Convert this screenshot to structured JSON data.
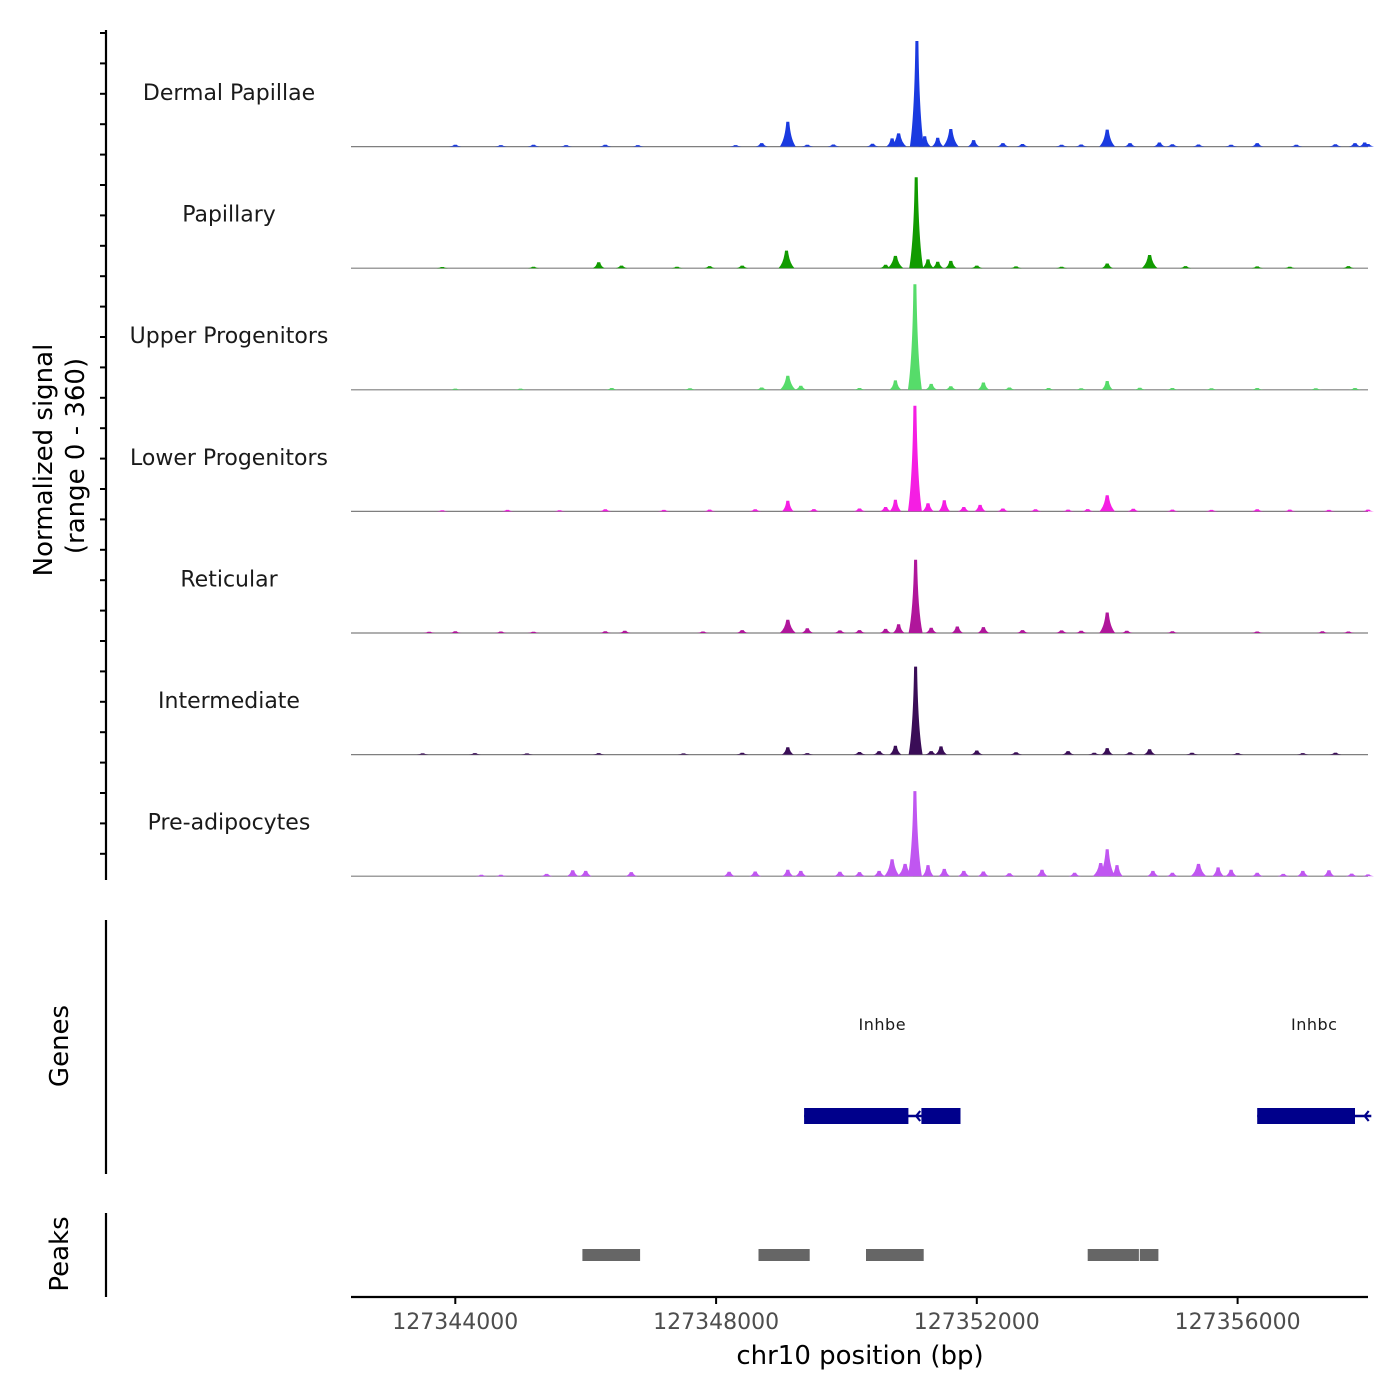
{
  "chart_data": {
    "type": "area",
    "title": "",
    "genome": {
      "chromosome": "chr10",
      "x_range": [
        127342400,
        127358000
      ]
    },
    "coverage": {
      "ylabel_line1": "Normalized signal",
      "ylabel_line2": "(range 0 - 360)",
      "ylim": [
        0,
        360
      ],
      "baseline_range": [
        127342400,
        127358000
      ],
      "tracks": [
        {
          "name": "Dermal Papillae",
          "color": "#1a3ae0",
          "peaks": [
            [
              127344000,
              6
            ],
            [
              127344700,
              5
            ],
            [
              127345200,
              6
            ],
            [
              127345700,
              5
            ],
            [
              127346300,
              6
            ],
            [
              127346800,
              5
            ],
            [
              127348300,
              5
            ],
            [
              127348700,
              12
            ],
            [
              127349100,
              85
            ],
            [
              127349400,
              6
            ],
            [
              127349800,
              7
            ],
            [
              127350400,
              10
            ],
            [
              127350700,
              28
            ],
            [
              127350800,
              45
            ],
            [
              127351080,
              360
            ],
            [
              127351200,
              35
            ],
            [
              127351400,
              30
            ],
            [
              127351600,
              60
            ],
            [
              127351950,
              22
            ],
            [
              127352400,
              12
            ],
            [
              127352700,
              9
            ],
            [
              127353300,
              6
            ],
            [
              127353600,
              7
            ],
            [
              127354000,
              58
            ],
            [
              127354350,
              12
            ],
            [
              127354800,
              14
            ],
            [
              127355000,
              8
            ],
            [
              127355400,
              7
            ],
            [
              127355900,
              6
            ],
            [
              127356300,
              12
            ],
            [
              127356900,
              6
            ],
            [
              127357500,
              8
            ],
            [
              127357800,
              12
            ],
            [
              127357950,
              14
            ],
            [
              127358000,
              9
            ]
          ]
        },
        {
          "name": "Papillary",
          "color": "#119b00",
          "peaks": [
            [
              127343800,
              4
            ],
            [
              127345200,
              5
            ],
            [
              127346200,
              20
            ],
            [
              127346550,
              9
            ],
            [
              127347400,
              5
            ],
            [
              127347900,
              7
            ],
            [
              127348400,
              9
            ],
            [
              127349080,
              60
            ],
            [
              127350600,
              12
            ],
            [
              127350750,
              42
            ],
            [
              127351070,
              310
            ],
            [
              127351250,
              30
            ],
            [
              127351400,
              22
            ],
            [
              127351600,
              25
            ],
            [
              127352000,
              9
            ],
            [
              127352600,
              6
            ],
            [
              127353300,
              5
            ],
            [
              127354000,
              16
            ],
            [
              127354650,
              45
            ],
            [
              127355200,
              7
            ],
            [
              127356300,
              6
            ],
            [
              127356800,
              5
            ],
            [
              127357700,
              7
            ]
          ]
        },
        {
          "name": "Upper Progenitors",
          "color": "#56dc6a",
          "peaks": [
            [
              127344000,
              4
            ],
            [
              127345000,
              4
            ],
            [
              127346400,
              6
            ],
            [
              127347600,
              5
            ],
            [
              127348700,
              8
            ],
            [
              127349100,
              48
            ],
            [
              127349300,
              14
            ],
            [
              127350200,
              6
            ],
            [
              127350750,
              32
            ],
            [
              127351050,
              360
            ],
            [
              127351300,
              20
            ],
            [
              127351600,
              12
            ],
            [
              127352100,
              25
            ],
            [
              127352500,
              8
            ],
            [
              127353100,
              6
            ],
            [
              127353600,
              5
            ],
            [
              127354000,
              30
            ],
            [
              127354500,
              7
            ],
            [
              127355000,
              6
            ],
            [
              127355600,
              5
            ],
            [
              127356300,
              6
            ],
            [
              127357200,
              5
            ],
            [
              127357800,
              6
            ]
          ]
        },
        {
          "name": "Lower Progenitors",
          "color": "#f51ee3",
          "peaks": [
            [
              127343800,
              4
            ],
            [
              127344800,
              5
            ],
            [
              127345600,
              4
            ],
            [
              127346300,
              7
            ],
            [
              127347200,
              5
            ],
            [
              127347900,
              6
            ],
            [
              127348600,
              7
            ],
            [
              127349100,
              36
            ],
            [
              127349500,
              8
            ],
            [
              127350200,
              10
            ],
            [
              127350600,
              15
            ],
            [
              127350750,
              40
            ],
            [
              127351050,
              360
            ],
            [
              127351250,
              28
            ],
            [
              127351500,
              38
            ],
            [
              127351800,
              15
            ],
            [
              127352050,
              22
            ],
            [
              127352400,
              10
            ],
            [
              127352900,
              7
            ],
            [
              127353400,
              6
            ],
            [
              127353700,
              8
            ],
            [
              127354000,
              55
            ],
            [
              127354400,
              9
            ],
            [
              127355000,
              6
            ],
            [
              127355600,
              5
            ],
            [
              127356300,
              7
            ],
            [
              127356800,
              6
            ],
            [
              127357400,
              5
            ],
            [
              127358000,
              6
            ]
          ]
        },
        {
          "name": "Reticular",
          "color": "#b0169b",
          "peaks": [
            [
              127343600,
              4
            ],
            [
              127344000,
              6
            ],
            [
              127344700,
              5
            ],
            [
              127345200,
              4
            ],
            [
              127346300,
              6
            ],
            [
              127346600,
              8
            ],
            [
              127347800,
              5
            ],
            [
              127348400,
              10
            ],
            [
              127349100,
              45
            ],
            [
              127349400,
              16
            ],
            [
              127349900,
              9
            ],
            [
              127350200,
              10
            ],
            [
              127350600,
              14
            ],
            [
              127350800,
              30
            ],
            [
              127351060,
              250
            ],
            [
              127351300,
              18
            ],
            [
              127351700,
              22
            ],
            [
              127352100,
              20
            ],
            [
              127352700,
              10
            ],
            [
              127353300,
              9
            ],
            [
              127353600,
              8
            ],
            [
              127354000,
              70
            ],
            [
              127354300,
              8
            ],
            [
              127355000,
              6
            ],
            [
              127356300,
              5
            ],
            [
              127357300,
              6
            ],
            [
              127357700,
              5
            ]
          ]
        },
        {
          "name": "Intermediate",
          "color": "#3a0d57",
          "peaks": [
            [
              127343500,
              4
            ],
            [
              127344300,
              5
            ],
            [
              127345100,
              4
            ],
            [
              127346200,
              5
            ],
            [
              127347500,
              4
            ],
            [
              127348400,
              6
            ],
            [
              127349100,
              25
            ],
            [
              127349400,
              5
            ],
            [
              127350200,
              9
            ],
            [
              127350500,
              12
            ],
            [
              127350750,
              30
            ],
            [
              127351060,
              300
            ],
            [
              127351300,
              12
            ],
            [
              127351450,
              28
            ],
            [
              127352000,
              14
            ],
            [
              127352600,
              8
            ],
            [
              127353400,
              12
            ],
            [
              127353800,
              6
            ],
            [
              127354000,
              22
            ],
            [
              127354350,
              8
            ],
            [
              127354650,
              18
            ],
            [
              127355300,
              6
            ],
            [
              127356000,
              5
            ],
            [
              127357000,
              5
            ],
            [
              127357500,
              6
            ]
          ]
        },
        {
          "name": "Pre-adipocytes",
          "color": "#c056f1",
          "peaks": [
            [
              127344400,
              5
            ],
            [
              127344700,
              5
            ],
            [
              127345400,
              8
            ],
            [
              127345800,
              20
            ],
            [
              127346000,
              18
            ],
            [
              127346700,
              14
            ],
            [
              127348200,
              15
            ],
            [
              127348600,
              16
            ],
            [
              127349100,
              22
            ],
            [
              127349300,
              18
            ],
            [
              127349900,
              15
            ],
            [
              127350200,
              14
            ],
            [
              127350500,
              18
            ],
            [
              127350700,
              58
            ],
            [
              127350900,
              42
            ],
            [
              127351050,
              290
            ],
            [
              127351250,
              38
            ],
            [
              127351500,
              25
            ],
            [
              127351800,
              18
            ],
            [
              127352100,
              16
            ],
            [
              127352500,
              10
            ],
            [
              127353000,
              22
            ],
            [
              127353500,
              12
            ],
            [
              127353900,
              45
            ],
            [
              127354000,
              92
            ],
            [
              127354150,
              38
            ],
            [
              127354700,
              18
            ],
            [
              127355000,
              12
            ],
            [
              127355400,
              42
            ],
            [
              127355700,
              30
            ],
            [
              127355900,
              22
            ],
            [
              127356300,
              12
            ],
            [
              127356700,
              8
            ],
            [
              127357000,
              18
            ],
            [
              127357400,
              20
            ],
            [
              127357750,
              9
            ],
            [
              127358000,
              6
            ]
          ]
        }
      ]
    },
    "genes": {
      "ylabel": "Genes",
      "color": "#00008b",
      "items": [
        {
          "name": "Inhbe",
          "strand": "-",
          "start": 127349350,
          "end": 127351750,
          "exons": [
            [
              127349350,
              127350950
            ],
            [
              127351150,
              127351750
            ]
          ]
        },
        {
          "name": "Inhbc",
          "strand": "-",
          "start": 127356300,
          "end": 127358050,
          "exons": [
            [
              127356300,
              127357800
            ]
          ]
        }
      ]
    },
    "peaks_track": {
      "ylabel": "Peaks",
      "color": "#666666",
      "regions": [
        [
          127345950,
          127346850
        ],
        [
          127348650,
          127349450
        ],
        [
          127350300,
          127351200
        ],
        [
          127353700,
          127354500
        ],
        [
          127354500,
          127354800
        ]
      ]
    },
    "x_axis": {
      "xlabel": "chr10 position (bp)",
      "ticks": [
        127344000,
        127348000,
        127352000,
        127356000
      ],
      "tick_labels": [
        "127344000",
        "127348000",
        "127352000",
        "127356000"
      ]
    }
  }
}
